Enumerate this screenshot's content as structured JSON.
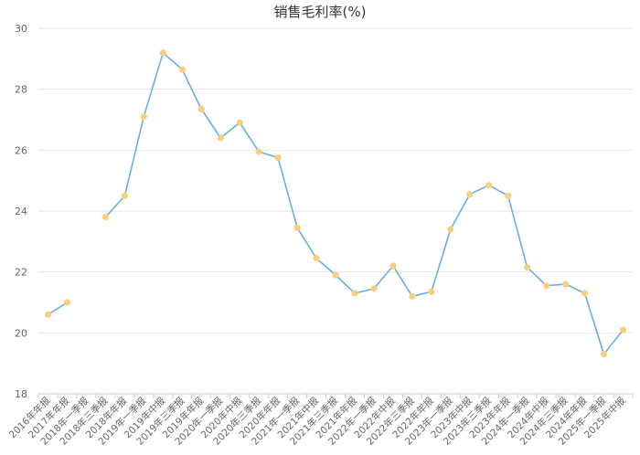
{
  "chart_data": {
    "type": "line",
    "title": "销售毛利率(%)",
    "xlabel": "",
    "ylabel": "",
    "ylim": [
      18,
      30
    ],
    "yticks": [
      18,
      20,
      22,
      24,
      26,
      28,
      30
    ],
    "grid": true,
    "legend": "none",
    "colors": {
      "line": "#6aaee0",
      "point": "#f8cf7f",
      "grid": "#e6e6e6",
      "axis": "#cccccc",
      "text": "#666666"
    },
    "categories": [
      "2016年年报",
      "2017年年报",
      "2018年一季报",
      "2018年三季报",
      "2018年年报",
      "2019年一季报",
      "2019年中报",
      "2019年三季报",
      "2019年年报",
      "2020年一季报",
      "2020年中报",
      "2020年三季报",
      "2020年年报",
      "2021年一季报",
      "2021年中报",
      "2021年三季报",
      "2021年年报",
      "2022年一季报",
      "2022年中报",
      "2022年三季报",
      "2022年年报",
      "2023年一季报",
      "2023年中报",
      "2023年三季报",
      "2023年年报",
      "2024年一季报",
      "2024年中报",
      "2024年三季报",
      "2024年年报",
      "2025年一季报",
      "2025年中报"
    ],
    "series": [
      {
        "values": [
          20.6,
          21.0,
          null,
          23.8,
          24.5,
          27.1,
          29.2,
          28.65,
          27.35,
          26.4,
          26.9,
          25.95,
          25.75,
          23.45,
          22.45,
          21.9,
          21.3,
          21.45,
          22.2,
          21.2,
          21.35,
          23.4,
          24.55,
          24.85,
          24.5,
          22.15,
          21.55,
          21.6,
          21.3,
          19.3,
          20.1
        ]
      }
    ]
  }
}
